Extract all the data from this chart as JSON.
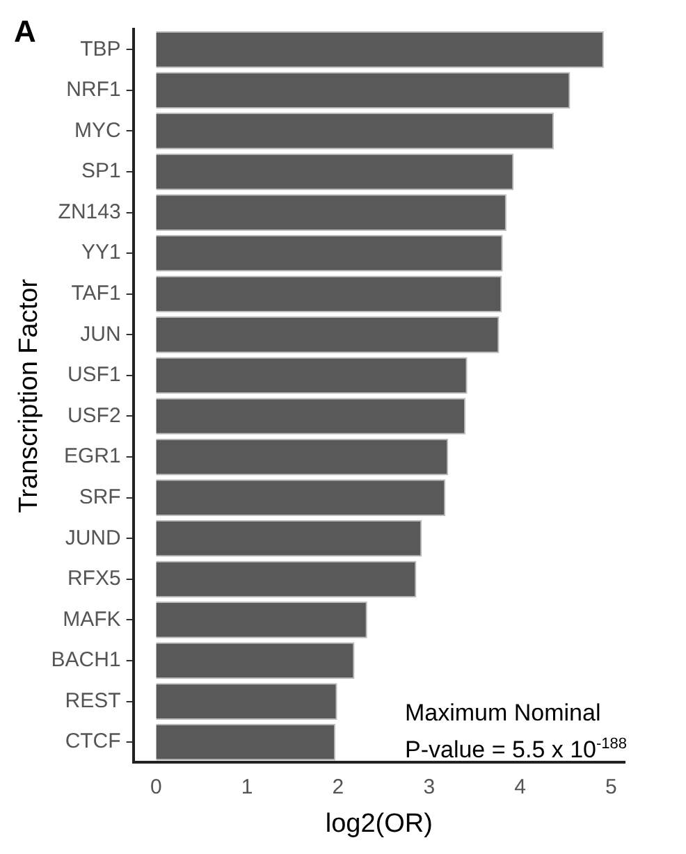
{
  "chart_data": {
    "type": "bar",
    "orientation": "horizontal",
    "xlabel": "log2(OR)",
    "ylabel": "Transcription Factor",
    "categories": [
      "TBP",
      "NRF1",
      "MYC",
      "SP1",
      "ZN143",
      "YY1",
      "TAF1",
      "JUN",
      "USF1",
      "USF2",
      "EGR1",
      "SRF",
      "JUND",
      "RFX5",
      "MAFK",
      "BACH1",
      "REST",
      "CTCF"
    ],
    "values": [
      4.92,
      4.55,
      4.37,
      3.93,
      3.85,
      3.81,
      3.8,
      3.77,
      3.42,
      3.4,
      3.21,
      3.18,
      2.92,
      2.86,
      2.32,
      2.18,
      1.99,
      1.97
    ],
    "color": "#595959",
    "xlim": [
      -0.25,
      5.15
    ],
    "xticks": [
      0,
      1,
      2,
      3,
      4,
      5
    ],
    "grid": false,
    "legend": false,
    "annotations": [
      "A",
      "Maximum Nominal\nP-value = 5.5 x 10$^{-188}$"
    ]
  }
}
